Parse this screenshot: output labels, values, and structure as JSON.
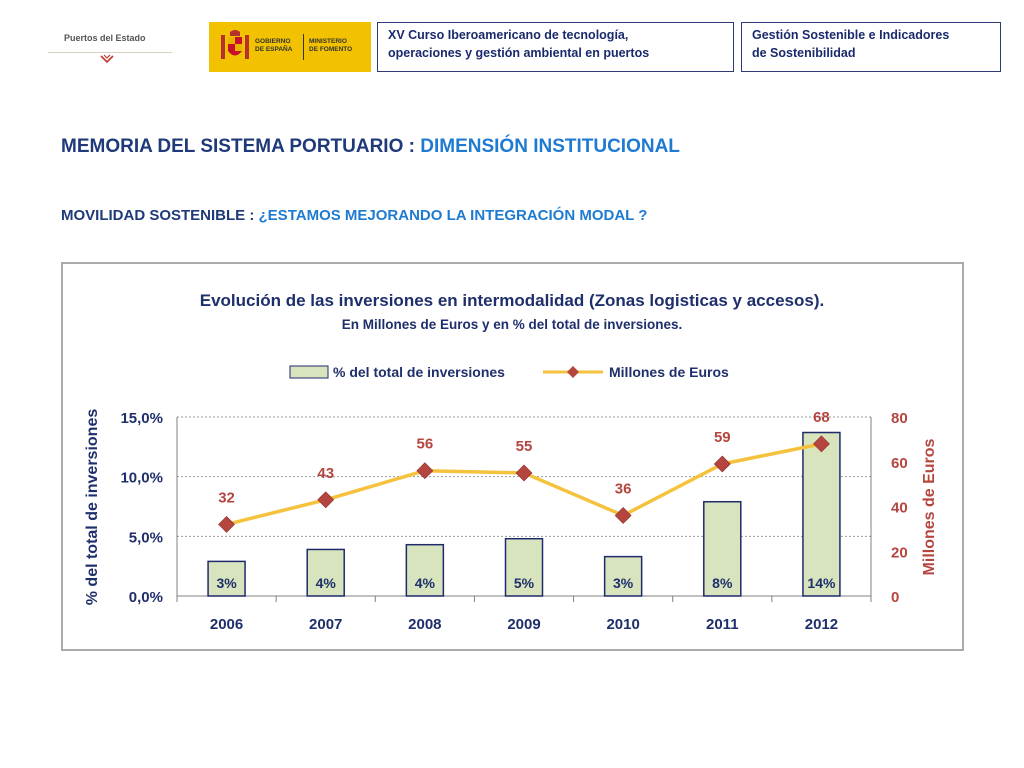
{
  "header": {
    "org_logo_text": "Puertos del Estado",
    "gov_logo": {
      "left_text": "GOBIERNO\nDE ESPAÑA",
      "right_text": "MINISTERIO\nDE FOMENTO"
    },
    "course_box": "XV Curso Iberoamericano de tecnología,\noperaciones y gestión ambiental en puertos",
    "topic_box": "Gestión Sostenible e Indicadores\nde Sostenibilidad"
  },
  "titles": {
    "main_prefix": "MEMORIA DEL SISTEMA PORTUARIO : ",
    "main_highlight": "DIMENSIÓN INSTITUCIONAL",
    "sub_prefix": "MOVILIDAD SOSTENIBLE : ",
    "sub_highlight": "¿ESTAMOS MEJORANDO LA INTEGRACIÓN MODAL  ?"
  },
  "colors": {
    "navy": "#1f3a7a",
    "accent_blue": "#1f7ad1",
    "bar_fill": "#d7e4bd",
    "bar_stroke": "#1f2a6b",
    "line": "#f5c23d",
    "marker": "#b5453f",
    "right_axis": "#b5453f"
  },
  "chart_data": {
    "type": "bar",
    "title": "Evolución de las inversiones en intermodalidad (Zonas logisticas y accesos).",
    "subtitle": "En Millones de Euros y en % del total de inversiones.",
    "categories": [
      "2006",
      "2007",
      "2008",
      "2009",
      "2010",
      "2011",
      "2012"
    ],
    "series": [
      {
        "name": "% del total de inversiones",
        "type": "bar",
        "axis": "left",
        "values": [
          2.9,
          3.9,
          4.3,
          4.8,
          3.3,
          7.9,
          13.7
        ],
        "labels": [
          "3%",
          "4%",
          "4%",
          "5%",
          "3%",
          "8%",
          "14%"
        ]
      },
      {
        "name": "Millones de Euros",
        "type": "line",
        "axis": "right",
        "values": [
          32,
          43,
          56,
          55,
          36,
          59,
          68
        ],
        "labels": [
          "32",
          "43",
          "56",
          "55",
          "36",
          "59",
          "68"
        ]
      }
    ],
    "ylabel": "% del total de inversiones",
    "y2label": "Millones de Euros",
    "ylim": [
      0,
      15
    ],
    "y2lim": [
      0,
      80
    ],
    "yticks": [
      "0,0%",
      "5,0%",
      "10,0%",
      "15,0%"
    ],
    "y2ticks": [
      "0",
      "20",
      "40",
      "60",
      "80"
    ],
    "grid": true,
    "legend": "top-center"
  }
}
